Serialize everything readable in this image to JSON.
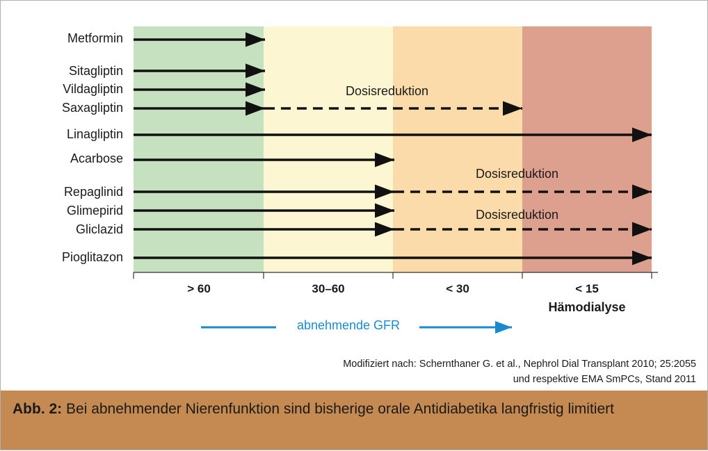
{
  "drugs": [
    "Metformin",
    "Sitagliptin",
    "Vildagliptin",
    "Saxagliptin",
    "Linagliptin",
    "Acarbose",
    "Repaglinid",
    "Glimepirid",
    "Gliclazid",
    "Pioglitazon"
  ],
  "gfr_categories": [
    "> 60",
    "30–60",
    "< 30",
    "< 15"
  ],
  "gfr_category_sub": "Hämodialyse",
  "dose_reduction_label": "Dosisreduktion",
  "gfr_arrow_label": "abnehmende GFR",
  "source_line1": "Modifiziert nach: Schernthaner G. et al., Nephrol Dial Transplant 2010; 25:2055",
  "source_line2": "und respektive EMA SmPCs, Stand 2011",
  "caption_bold": "Abb. 2:",
  "caption_text": " Bei abnehmender Nierenfunktion sind bisherige orale Antidiabetika langfristig limitiert",
  "colors": {
    "band_gt60": "#c5e1c0",
    "band_30_60": "#fdf6d2",
    "band_lt30": "#fbdba9",
    "band_lt15": "#dda08e",
    "arrow": "#111111",
    "gfr_arrow": "#1a8ad0",
    "caption_bg": "#c48a52"
  },
  "chart_data": {
    "type": "range-diagram",
    "x_categories": [
      "> 60",
      "30–60",
      "< 30",
      "< 15 Hämodialyse"
    ],
    "rows": [
      {
        "drug": "Metformin",
        "solid_to": "> 60"
      },
      {
        "drug": "Sitagliptin",
        "solid_to": "> 60"
      },
      {
        "drug": "Vildagliptin",
        "solid_to": "> 60"
      },
      {
        "drug": "Saxagliptin",
        "solid_to": "> 60",
        "dashed_to": "< 30",
        "dashed_note": "Dosisreduktion"
      },
      {
        "drug": "Linagliptin",
        "solid_to": "< 15 Hämodialyse"
      },
      {
        "drug": "Acarbose",
        "solid_to": "30–60"
      },
      {
        "drug": "Repaglinid",
        "solid_to": "30–60",
        "dashed_to": "< 15 Hämodialyse",
        "dashed_note": "Dosisreduktion"
      },
      {
        "drug": "Glimepirid",
        "solid_to": "30–60"
      },
      {
        "drug": "Gliclazid",
        "solid_to": "30–60",
        "dashed_to": "< 15 Hämodialyse",
        "dashed_note": "Dosisreduktion"
      },
      {
        "drug": "Pioglitazon",
        "solid_to": "< 15 Hämodialyse"
      }
    ]
  }
}
